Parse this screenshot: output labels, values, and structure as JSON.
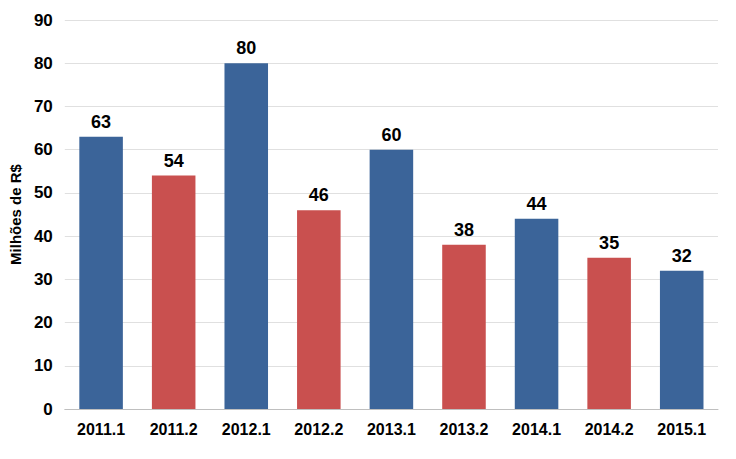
{
  "chart_data": {
    "type": "bar",
    "ylabel": "Milhões de R$",
    "categories": [
      "2011.1",
      "2011.2",
      "2012.1",
      "2012.2",
      "2013.1",
      "2013.2",
      "2014.1",
      "2014.2",
      "2015.1"
    ],
    "values": [
      63,
      54,
      80,
      46,
      60,
      38,
      44,
      35,
      32
    ],
    "colors": [
      "#3b6499",
      "#c9504f",
      "#3b6499",
      "#c9504f",
      "#3b6499",
      "#c9504f",
      "#3b6499",
      "#c9504f",
      "#3b6499"
    ],
    "ylim": [
      0,
      90
    ],
    "yticks": [
      0,
      10,
      20,
      30,
      40,
      50,
      60,
      70,
      80,
      90
    ],
    "grid": true,
    "data_labels": true
  }
}
